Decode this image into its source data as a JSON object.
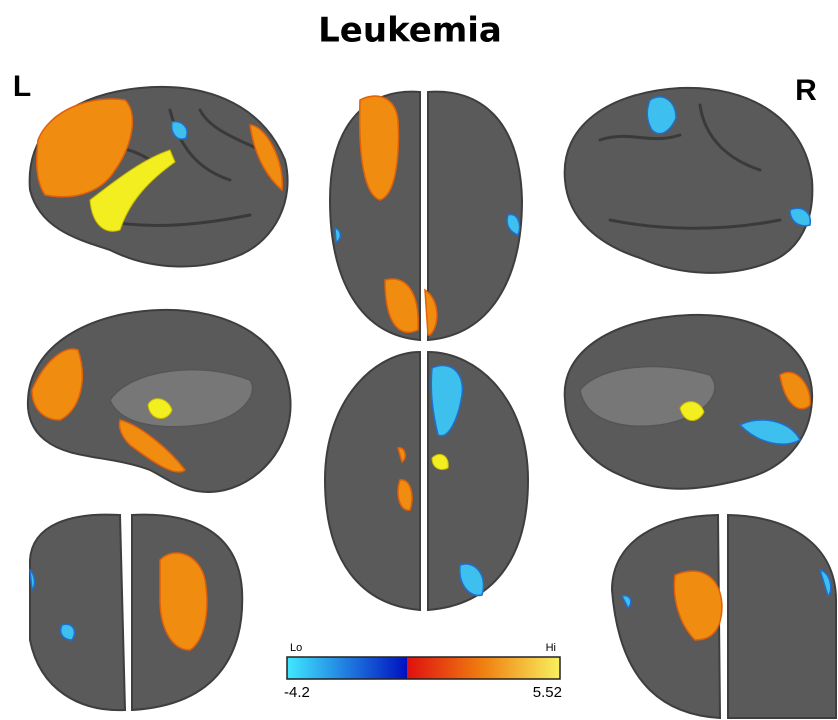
{
  "title": "Leukemia",
  "left_label": "L",
  "right_label": "R",
  "colorbar": {
    "lo_label": "Lo",
    "hi_label": "Hi",
    "min": -4.2,
    "max": 5.52
  }
}
